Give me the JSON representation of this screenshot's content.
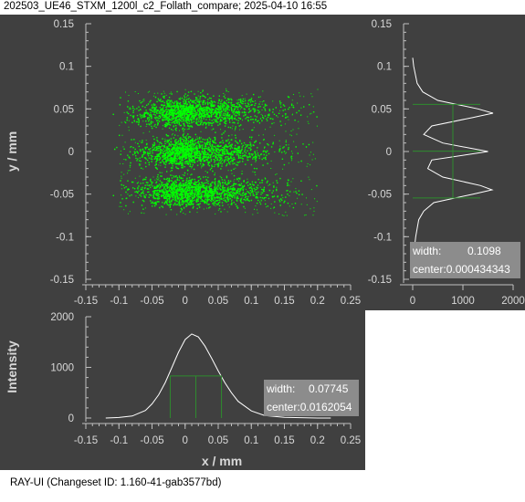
{
  "window": {
    "title": "202503_UE46_STXM_1200l_c2_Follath_compare; 2025-04-10 16:55"
  },
  "footer": {
    "text": "RAY-UI (Changeset ID: 1.160-41-gab3577bd)"
  },
  "colors": {
    "background": "#404040",
    "points": "#00ff00",
    "curve": "#ffffff",
    "fwhm": "#2e8b2e",
    "axis": "#c0c0c0",
    "info_box": "#8c8c8c"
  },
  "scatter": {
    "ylabel": "y / mm",
    "xlim": [
      -0.15,
      0.25
    ],
    "ylim": [
      -0.15,
      0.15
    ],
    "x_ticks": [
      "-0.15",
      "-0.1",
      "-0.05",
      "0",
      "0.05",
      "0.1",
      "0.15",
      "0.2",
      "0.25"
    ],
    "y_ticks": [
      "0.15",
      "0.1",
      "0.05",
      "0",
      "-0.05",
      "-0.1",
      "-0.15"
    ],
    "clusters_y": [
      0.047,
      0.0,
      -0.047
    ]
  },
  "y_histogram": {
    "x_ticks": [
      "0",
      "1000",
      "2000"
    ],
    "y_ticks": [
      "0.15",
      "0.1",
      "0.05",
      "0",
      "-0.05",
      "-0.1",
      "-0.15"
    ],
    "info": {
      "width_label": "width:",
      "width_value": "0.1098",
      "center_label": "center:",
      "center_value": "0.000434343"
    }
  },
  "x_histogram": {
    "xlabel": "x / mm",
    "ylabel": "Intensity",
    "x_ticks": [
      "-0.15",
      "-0.1",
      "-0.05",
      "0",
      "0.05",
      "0.1",
      "0.15",
      "0.2",
      "0.25"
    ],
    "y_ticks": [
      "2000",
      "1000",
      "0"
    ],
    "info": {
      "width_label": "width:",
      "width_value": "0.07745",
      "center_label": "center:",
      "center_value": "0.0162054"
    }
  },
  "chart_data": [
    {
      "type": "scatter",
      "title": "",
      "ylabel": "y / mm",
      "xlim": [
        -0.15,
        0.25
      ],
      "ylim": [
        -0.15,
        0.15
      ],
      "grid": false,
      "clusters": [
        {
          "y_center": 0.047,
          "x_range": [
            -0.11,
            0.2
          ]
        },
        {
          "y_center": 0.0,
          "x_range": [
            -0.11,
            0.2
          ]
        },
        {
          "y_center": -0.047,
          "x_range": [
            -0.11,
            0.2
          ]
        }
      ]
    },
    {
      "type": "line",
      "title": "",
      "x": [
        "y (mm)"
      ],
      "xlim": [
        0,
        2000
      ],
      "ylim": [
        -0.15,
        0.15
      ],
      "series": [
        {
          "values_y": [
            -0.14,
            -0.12,
            -0.1,
            -0.08,
            -0.07,
            -0.06,
            -0.05,
            -0.045,
            -0.04,
            -0.03,
            -0.02,
            -0.01,
            0.0,
            0.01,
            0.02,
            0.03,
            0.04,
            0.045,
            0.05,
            0.06,
            0.07,
            0.08,
            0.1,
            0.11
          ],
          "values_x": [
            0,
            20,
            60,
            120,
            220,
            420,
            1200,
            1580,
            1350,
            600,
            300,
            380,
            1500,
            600,
            220,
            380,
            1200,
            1600,
            1300,
            500,
            200,
            90,
            20,
            0
          ]
        }
      ],
      "fwhm": {
        "width": 0.1098,
        "center": 0.000434343,
        "half_max": 800
      }
    },
    {
      "type": "line",
      "title": "",
      "xlabel": "x / mm",
      "ylabel": "Intensity",
      "xlim": [
        -0.15,
        0.25
      ],
      "ylim": [
        0,
        2000
      ],
      "series": [
        {
          "x": [
            -0.12,
            -0.1,
            -0.08,
            -0.06,
            -0.05,
            -0.04,
            -0.03,
            -0.02,
            -0.01,
            0.0,
            0.01,
            0.02,
            0.03,
            0.04,
            0.05,
            0.06,
            0.07,
            0.08,
            0.1,
            0.12,
            0.15,
            0.2,
            0.22
          ],
          "values": [
            0,
            10,
            40,
            150,
            280,
            460,
            700,
            1000,
            1300,
            1550,
            1660,
            1600,
            1420,
            1180,
            930,
            700,
            500,
            330,
            140,
            50,
            15,
            0,
            0
          ]
        }
      ],
      "fwhm": {
        "width": 0.07745,
        "center": 0.0162054,
        "half_max": 830
      }
    }
  ]
}
